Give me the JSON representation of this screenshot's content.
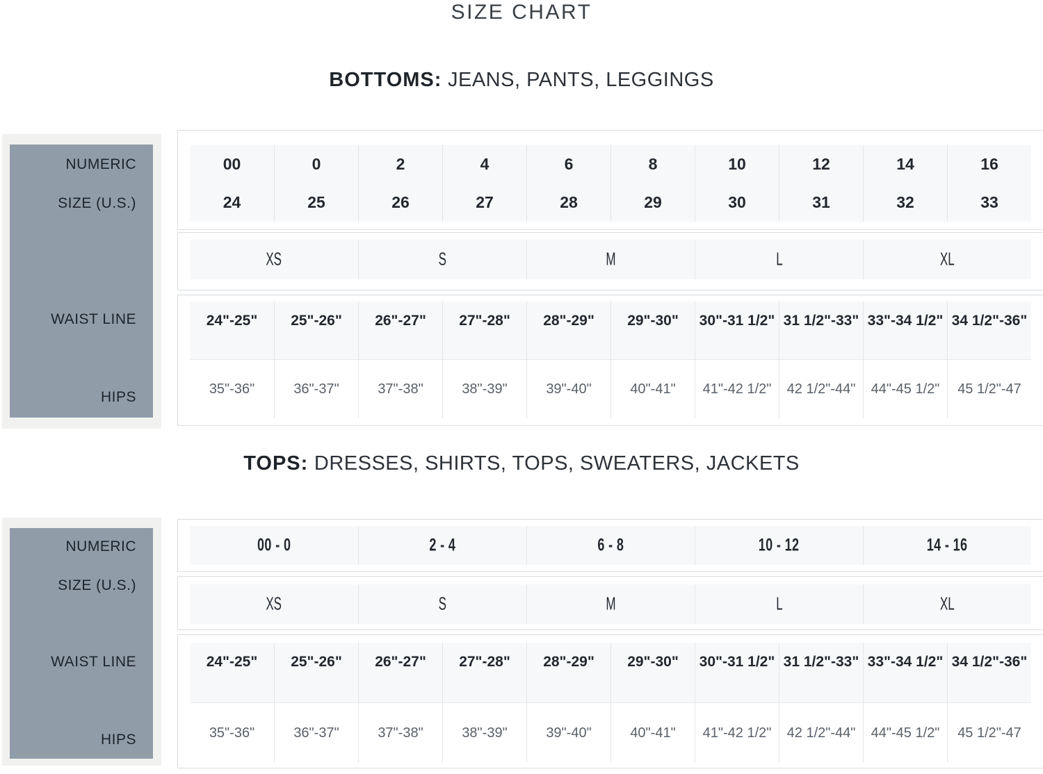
{
  "page": {
    "title": "SIZE CHART"
  },
  "colors": {
    "sidebar": "#909da9",
    "sidebar_frame": "#f1f1ef",
    "cell_background": "#f7f8fa",
    "border": "#d9dcdf",
    "text_dark": "#23282f",
    "text_muted": "#596069"
  },
  "bottoms": {
    "heading_bold": "BOTTOMS:",
    "heading_rest": " JEANS, PANTS, LEGGINGS",
    "sidebar_labels": [
      "NUMERIC",
      "SIZE (U.S.)",
      "WAIST LINE",
      "HIPS"
    ],
    "numeric_sizes": [
      "00",
      "0",
      "2",
      "4",
      "6",
      "8",
      "10",
      "12",
      "14",
      "16"
    ],
    "numeric_sizes_row2": [
      "24",
      "25",
      "26",
      "27",
      "28",
      "29",
      "30",
      "31",
      "32",
      "33"
    ],
    "letter_sizes": [
      "XS",
      "S",
      "M",
      "L",
      "XL"
    ],
    "waist": [
      "24\"-25\"",
      "25\"-26\"",
      "26\"-27\"",
      "27\"-28\"",
      "28\"-29\"",
      "29\"-30\"",
      "30\"-31 1/2\"",
      "31 1/2\"-33\"",
      "33\"-34 1/2\"",
      "34 1/2\"-36\""
    ],
    "hips": [
      "35\"-36\"",
      "36\"-37\"",
      "37\"-38\"",
      "38\"-39\"",
      "39\"-40\"",
      "40\"-41\"",
      "41\"-42 1/2\"",
      "42 1/2\"-44\"",
      "44\"-45 1/2\"",
      "45 1/2\"-47"
    ]
  },
  "tops": {
    "heading_bold": "TOPS:",
    "heading_rest": " DRESSES, SHIRTS, TOPS, SWEATERS, JACKETS",
    "sidebar_labels": [
      "NUMERIC",
      "SIZE (U.S.)",
      "WAIST LINE",
      "HIPS"
    ],
    "numeric_ranges": [
      "00 - 0",
      "2 - 4",
      "6 - 8",
      "10 - 12",
      "14 - 16"
    ],
    "letter_sizes": [
      "XS",
      "S",
      "M",
      "L",
      "XL"
    ],
    "waist": [
      "24\"-25\"",
      "25\"-26\"",
      "26\"-27\"",
      "27\"-28\"",
      "28\"-29\"",
      "29\"-30\"",
      "30\"-31 1/2\"",
      "31 1/2\"-33\"",
      "33\"-34 1/2\"",
      "34 1/2\"-36\""
    ],
    "hips": [
      "35\"-36\"",
      "36\"-37\"",
      "37\"-38\"",
      "38\"-39\"",
      "39\"-40\"",
      "40\"-41\"",
      "41\"-42 1/2\"",
      "42 1/2\"-44\"",
      "44\"-45 1/2\"",
      "45 1/2\"-47"
    ]
  }
}
